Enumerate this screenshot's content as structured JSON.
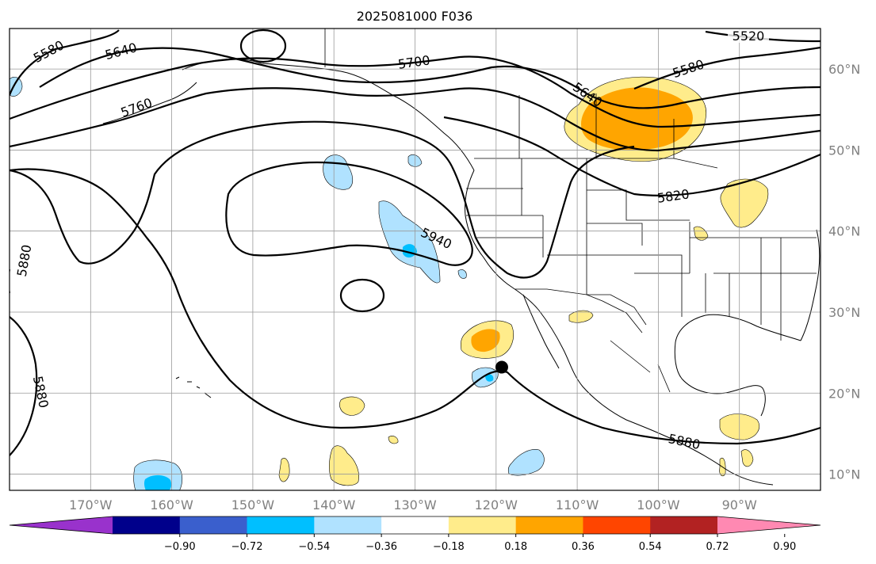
{
  "title": "2025081000 F036",
  "map": {
    "lon_range": [
      -180,
      -80
    ],
    "lat_range": [
      8,
      65
    ],
    "grid_lons": [
      -170,
      -160,
      -150,
      -140,
      -130,
      -120,
      -110,
      -100,
      -90
    ],
    "grid_lats": [
      10,
      20,
      30,
      40,
      50,
      60
    ],
    "lon_labels": [
      "170°W",
      "160°W",
      "150°W",
      "140°W",
      "130°W",
      "120°W",
      "110°W",
      "100°W",
      "90°W"
    ],
    "lat_labels": [
      "10°N",
      "20°N",
      "30°N",
      "40°N",
      "50°N",
      "60°N"
    ]
  },
  "contours": {
    "labels": [
      "5520",
      "5580",
      "5580",
      "5640",
      "5640",
      "5700",
      "5760",
      "5820",
      "5880",
      "5880",
      "5880",
      "5940"
    ]
  },
  "marker": {
    "name": "storm-center",
    "lon": -119.3,
    "lat": 23.2
  },
  "colorbar": {
    "ticks": [
      "−0.90",
      "−0.72",
      "−0.54",
      "−0.36",
      "−0.18",
      "0.18",
      "0.36",
      "0.54",
      "0.72",
      "0.90"
    ],
    "colors": [
      "#9932cc",
      "#00008b",
      "#3a5fcd",
      "#00bfff",
      "#b0e2ff",
      "#ffffff",
      "#ffec8b",
      "#ffa500",
      "#ff4500",
      "#b22222",
      "#ff89b2"
    ]
  }
}
